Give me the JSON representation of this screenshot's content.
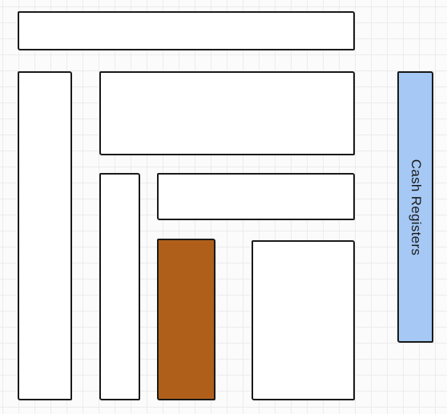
{
  "diagram": {
    "blocks": [
      {
        "id": "b1",
        "name": "top-bar-block",
        "label": "",
        "fill": "#ffffff"
      },
      {
        "id": "b2",
        "name": "left-tall-block",
        "label": "",
        "fill": "#ffffff"
      },
      {
        "id": "b3",
        "name": "upper-center-block",
        "label": "",
        "fill": "#ffffff"
      },
      {
        "id": "b4",
        "name": "narrow-column-block",
        "label": "",
        "fill": "#ffffff"
      },
      {
        "id": "b5",
        "name": "middle-bar-block",
        "label": "",
        "fill": "#ffffff"
      },
      {
        "id": "b6",
        "name": "brown-block",
        "label": "",
        "fill": "#b05f1a"
      },
      {
        "id": "b7",
        "name": "lower-right-block",
        "label": "",
        "fill": "#ffffff"
      },
      {
        "id": "b8",
        "name": "cash-registers-block",
        "label": "Cash Registers",
        "fill": "#a5c8f5"
      }
    ]
  }
}
